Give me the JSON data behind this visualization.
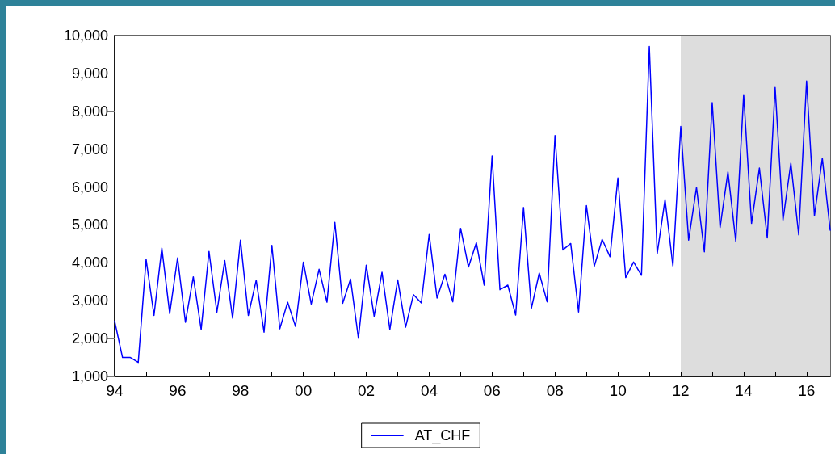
{
  "chart_data": {
    "type": "line",
    "x": [
      1994,
      1994.25,
      1994.5,
      1994.75,
      1995,
      1995.25,
      1995.5,
      1995.75,
      1996,
      1996.25,
      1996.5,
      1996.75,
      1997,
      1997.25,
      1997.5,
      1997.75,
      1998,
      1998.25,
      1998.5,
      1998.75,
      1999,
      1999.25,
      1999.5,
      1999.75,
      2000,
      2000.25,
      2000.5,
      2000.75,
      2001,
      2001.25,
      2001.5,
      2001.75,
      2002,
      2002.25,
      2002.5,
      2002.75,
      2003,
      2003.25,
      2003.5,
      2003.75,
      2004,
      2004.25,
      2004.5,
      2004.75,
      2005,
      2005.25,
      2005.5,
      2005.75,
      2006,
      2006.25,
      2006.5,
      2006.75,
      2007,
      2007.25,
      2007.5,
      2007.75,
      2008,
      2008.25,
      2008.5,
      2008.75,
      2009,
      2009.25,
      2009.5,
      2009.75,
      2010,
      2010.25,
      2010.5,
      2010.75,
      2011,
      2011.25,
      2011.5,
      2011.75,
      2012,
      2012.25,
      2012.5,
      2012.75,
      2013,
      2013.25,
      2013.5,
      2013.75,
      2014,
      2014.25,
      2014.5,
      2014.75,
      2015,
      2015.25,
      2015.5,
      2015.75,
      2016,
      2016.25,
      2016.5,
      2016.75
    ],
    "series": [
      {
        "name": "AT_CHF",
        "color": "#0000ff",
        "values": [
          2460,
          1500,
          1500,
          1370,
          4090,
          2610,
          4390,
          2660,
          4130,
          2430,
          3630,
          2240,
          4300,
          2700,
          4060,
          2540,
          4600,
          2610,
          3540,
          2170,
          4460,
          2260,
          2960,
          2320,
          4020,
          2910,
          3830,
          2960,
          5070,
          2930,
          3570,
          2010,
          3940,
          2590,
          3750,
          2240,
          3550,
          2300,
          3160,
          2940,
          4750,
          3070,
          3700,
          2970,
          4910,
          3890,
          4530,
          3410,
          6820,
          3290,
          3410,
          2620,
          5460,
          2800,
          3730,
          2970,
          7360,
          4340,
          4510,
          2700,
          5510,
          3910,
          4620,
          4160,
          6240,
          3610,
          4020,
          3670,
          9710,
          4240,
          5670,
          3920,
          7600,
          4600,
          5990,
          4290,
          8230,
          4930,
          6400,
          4570,
          8440,
          5040,
          6500,
          4660,
          8630,
          5130,
          6630,
          4740,
          8800,
          5240,
          6760,
          4860
        ]
      }
    ],
    "xlim": [
      1994,
      2016.75
    ],
    "xticks": [
      {
        "value": 1994,
        "label": "94"
      },
      {
        "value": 1995,
        "label": null
      },
      {
        "value": 1996,
        "label": "96"
      },
      {
        "value": 1997,
        "label": null
      },
      {
        "value": 1998,
        "label": "98"
      },
      {
        "value": 1999,
        "label": null
      },
      {
        "value": 2000,
        "label": "00"
      },
      {
        "value": 2001,
        "label": null
      },
      {
        "value": 2002,
        "label": "02"
      },
      {
        "value": 2003,
        "label": null
      },
      {
        "value": 2004,
        "label": "04"
      },
      {
        "value": 2005,
        "label": null
      },
      {
        "value": 2006,
        "label": "06"
      },
      {
        "value": 2007,
        "label": null
      },
      {
        "value": 2008,
        "label": "08"
      },
      {
        "value": 2009,
        "label": null
      },
      {
        "value": 2010,
        "label": "10"
      },
      {
        "value": 2011,
        "label": null
      },
      {
        "value": 2012,
        "label": "12"
      },
      {
        "value": 2013,
        "label": null
      },
      {
        "value": 2014,
        "label": "14"
      },
      {
        "value": 2015,
        "label": null
      },
      {
        "value": 2016,
        "label": "16"
      }
    ],
    "ylim": [
      1000,
      10000
    ],
    "yticks": [
      {
        "value": 1000,
        "label": "1,000"
      },
      {
        "value": 2000,
        "label": "2,000"
      },
      {
        "value": 3000,
        "label": "3,000"
      },
      {
        "value": 4000,
        "label": "4,000"
      },
      {
        "value": 5000,
        "label": "5,000"
      },
      {
        "value": 6000,
        "label": "6,000"
      },
      {
        "value": 7000,
        "label": "7,000"
      },
      {
        "value": 8000,
        "label": "8,000"
      },
      {
        "value": 9000,
        "label": "9,000"
      },
      {
        "value": 10000,
        "label": "10,000"
      }
    ],
    "bands": [
      {
        "axis": "x",
        "from": 2012,
        "to": 2016.75,
        "color": "#dddddd"
      }
    ],
    "grid": false,
    "legend": "bottom",
    "marker": "none",
    "line_style": "solid"
  }
}
